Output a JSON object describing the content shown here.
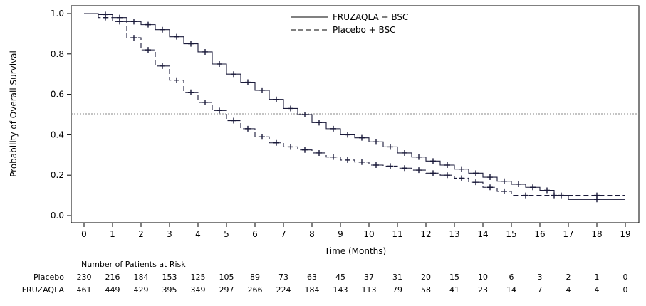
{
  "chart_data": {
    "type": "line",
    "subtype": "kaplan-meier",
    "title": "",
    "xlabel": "Time (Months)",
    "ylabel": "Probability of Overall Survival",
    "xlim": [
      0,
      19
    ],
    "ylim": [
      0,
      1
    ],
    "x_ticks": [
      0,
      1,
      2,
      3,
      4,
      5,
      6,
      7,
      8,
      9,
      10,
      11,
      12,
      13,
      14,
      15,
      16,
      17,
      18,
      19
    ],
    "y_ticks": [
      "0.0",
      "0.2",
      "0.4",
      "0.6",
      "0.8",
      "1.0"
    ],
    "grid": false,
    "reference_line": {
      "y": 0.5,
      "style": "dotted"
    },
    "legend": {
      "position": "top-center"
    },
    "series": [
      {
        "name": "FRUZAQLA + BSC",
        "style": "solid",
        "points": [
          [
            0,
            1.0
          ],
          [
            0.5,
            0.995
          ],
          [
            1.0,
            0.98
          ],
          [
            1.5,
            0.96
          ],
          [
            2.0,
            0.945
          ],
          [
            2.5,
            0.92
          ],
          [
            3.0,
            0.885
          ],
          [
            3.5,
            0.85
          ],
          [
            4.0,
            0.81
          ],
          [
            4.5,
            0.75
          ],
          [
            5.0,
            0.7
          ],
          [
            5.5,
            0.66
          ],
          [
            6.0,
            0.62
          ],
          [
            6.5,
            0.575
          ],
          [
            7.0,
            0.53
          ],
          [
            7.5,
            0.5
          ],
          [
            8.0,
            0.46
          ],
          [
            8.5,
            0.43
          ],
          [
            9.0,
            0.4
          ],
          [
            9.5,
            0.385
          ],
          [
            10.0,
            0.365
          ],
          [
            10.5,
            0.34
          ],
          [
            11.0,
            0.31
          ],
          [
            11.5,
            0.29
          ],
          [
            12.0,
            0.27
          ],
          [
            12.5,
            0.25
          ],
          [
            13.0,
            0.23
          ],
          [
            13.5,
            0.21
          ],
          [
            14.0,
            0.19
          ],
          [
            14.5,
            0.17
          ],
          [
            15.0,
            0.155
          ],
          [
            15.5,
            0.14
          ],
          [
            16.0,
            0.125
          ],
          [
            16.5,
            0.1
          ],
          [
            17.0,
            0.08
          ],
          [
            19.0,
            0.08
          ]
        ]
      },
      {
        "name": "Placebo + BSC",
        "style": "dashed",
        "points": [
          [
            0,
            1.0
          ],
          [
            0.5,
            0.98
          ],
          [
            1.0,
            0.96
          ],
          [
            1.5,
            0.88
          ],
          [
            2.0,
            0.82
          ],
          [
            2.5,
            0.74
          ],
          [
            3.0,
            0.67
          ],
          [
            3.5,
            0.61
          ],
          [
            4.0,
            0.56
          ],
          [
            4.5,
            0.52
          ],
          [
            5.0,
            0.47
          ],
          [
            5.5,
            0.43
          ],
          [
            6.0,
            0.39
          ],
          [
            6.5,
            0.36
          ],
          [
            7.0,
            0.34
          ],
          [
            7.5,
            0.325
          ],
          [
            8.0,
            0.31
          ],
          [
            8.5,
            0.29
          ],
          [
            9.0,
            0.275
          ],
          [
            9.5,
            0.265
          ],
          [
            10.0,
            0.25
          ],
          [
            10.5,
            0.245
          ],
          [
            11.0,
            0.235
          ],
          [
            11.5,
            0.225
          ],
          [
            12.0,
            0.21
          ],
          [
            12.5,
            0.2
          ],
          [
            13.0,
            0.185
          ],
          [
            13.5,
            0.165
          ],
          [
            14.0,
            0.14
          ],
          [
            14.5,
            0.12
          ],
          [
            15.0,
            0.1
          ],
          [
            16.0,
            0.1
          ],
          [
            17.0,
            0.1
          ],
          [
            19.0,
            0.1
          ]
        ]
      }
    ],
    "risk_table": {
      "title": "Number of Patients at Risk",
      "rows": [
        {
          "label": "Placebo",
          "values": [
            230,
            216,
            184,
            153,
            125,
            105,
            89,
            73,
            63,
            45,
            37,
            31,
            20,
            15,
            10,
            6,
            3,
            2,
            1,
            0
          ]
        },
        {
          "label": "FRUZAQLA",
          "values": [
            461,
            449,
            429,
            395,
            349,
            297,
            266,
            224,
            184,
            143,
            113,
            79,
            58,
            41,
            23,
            14,
            7,
            4,
            4,
            0
          ]
        }
      ]
    }
  }
}
